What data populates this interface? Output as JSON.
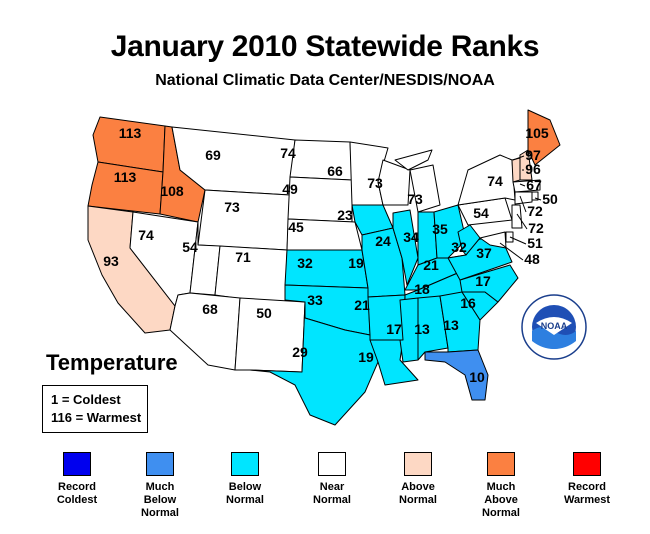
{
  "title": "January 2010 Statewide Ranks",
  "subtitle": "National Climatic Data Center/NESDIS/NOAA",
  "section_title": "Temperature",
  "key": {
    "line1": "1 = Coldest",
    "line2": "116 = Warmest"
  },
  "logo": {
    "text": "NOAA"
  },
  "colors": {
    "record_coldest": "#0000ee",
    "much_below": "#3f8ff0",
    "below": "#00e5ff",
    "near": "#ffffff",
    "above": "#fdd8c4",
    "much_above": "#fb8041",
    "record_warmest": "#ff0000"
  },
  "legend": [
    {
      "label": "Record\nColdest",
      "color": "#0000ee"
    },
    {
      "label": "Much\nBelow\nNormal",
      "color": "#3f8ff0"
    },
    {
      "label": "Below\nNormal",
      "color": "#00e5ff"
    },
    {
      "label": "Near\nNormal",
      "color": "#ffffff"
    },
    {
      "label": "Above\nNormal",
      "color": "#fdd8c4"
    },
    {
      "label": "Much\nAbove\nNormal",
      "color": "#fb8041"
    },
    {
      "label": "Record\nWarmest",
      "color": "#ff0000"
    }
  ],
  "states": [
    {
      "code": "WA",
      "rank": "113",
      "category": "much_above"
    },
    {
      "code": "OR",
      "rank": "113",
      "category": "much_above"
    },
    {
      "code": "ID",
      "rank": "108",
      "category": "much_above"
    },
    {
      "code": "CA",
      "rank": "93",
      "category": "above"
    },
    {
      "code": "NV",
      "rank": "74",
      "category": "near"
    },
    {
      "code": "MT",
      "rank": "69",
      "category": "near"
    },
    {
      "code": "WY",
      "rank": "73",
      "category": "near"
    },
    {
      "code": "UT",
      "rank": "54",
      "category": "near"
    },
    {
      "code": "CO",
      "rank": "71",
      "category": "near"
    },
    {
      "code": "AZ",
      "rank": "68",
      "category": "near"
    },
    {
      "code": "NM",
      "rank": "50",
      "category": "near"
    },
    {
      "code": "ND",
      "rank": "74",
      "category": "near"
    },
    {
      "code": "SD",
      "rank": "49",
      "category": "near"
    },
    {
      "code": "NE",
      "rank": "45",
      "category": "near"
    },
    {
      "code": "KS",
      "rank": "32",
      "category": "below"
    },
    {
      "code": "OK",
      "rank": "33",
      "category": "below"
    },
    {
      "code": "TX",
      "rank": "29",
      "category": "below"
    },
    {
      "code": "MN",
      "rank": "66",
      "category": "near"
    },
    {
      "code": "IA",
      "rank": "23",
      "category": "below"
    },
    {
      "code": "MO",
      "rank": "19",
      "category": "below"
    },
    {
      "code": "AR",
      "rank": "21",
      "category": "below"
    },
    {
      "code": "LA",
      "rank": "19",
      "category": "below"
    },
    {
      "code": "WI",
      "rank": "73",
      "category": "near"
    },
    {
      "code": "IL",
      "rank": "24",
      "category": "below"
    },
    {
      "code": "MI",
      "rank": "73",
      "category": "near"
    },
    {
      "code": "IN",
      "rank": "34",
      "category": "below"
    },
    {
      "code": "OH",
      "rank": "35",
      "category": "below"
    },
    {
      "code": "KY",
      "rank": "21",
      "category": "below"
    },
    {
      "code": "TN",
      "rank": "18",
      "category": "below"
    },
    {
      "code": "MS",
      "rank": "17",
      "category": "below"
    },
    {
      "code": "AL",
      "rank": "13",
      "category": "below"
    },
    {
      "code": "GA",
      "rank": "13",
      "category": "below"
    },
    {
      "code": "FL",
      "rank": "10",
      "category": "much_below"
    },
    {
      "code": "SC",
      "rank": "16",
      "category": "below"
    },
    {
      "code": "NC",
      "rank": "17",
      "category": "below"
    },
    {
      "code": "VA",
      "rank": "37",
      "category": "below"
    },
    {
      "code": "WV",
      "rank": "32",
      "category": "below"
    },
    {
      "code": "PA",
      "rank": "54",
      "category": "near"
    },
    {
      "code": "NY",
      "rank": "74",
      "category": "near"
    },
    {
      "code": "VT",
      "rank": "97",
      "category": "above"
    },
    {
      "code": "NH",
      "rank": "96",
      "category": "above"
    },
    {
      "code": "ME",
      "rank": "105",
      "category": "much_above"
    },
    {
      "code": "MA",
      "rank": "67",
      "category": "near"
    },
    {
      "code": "RI",
      "rank": "50",
      "category": "near"
    },
    {
      "code": "CT",
      "rank": "72",
      "category": "near"
    },
    {
      "code": "NJ",
      "rank": "72",
      "category": "near"
    },
    {
      "code": "DE",
      "rank": "51",
      "category": "near"
    },
    {
      "code": "MD",
      "rank": "48",
      "category": "near"
    }
  ]
}
